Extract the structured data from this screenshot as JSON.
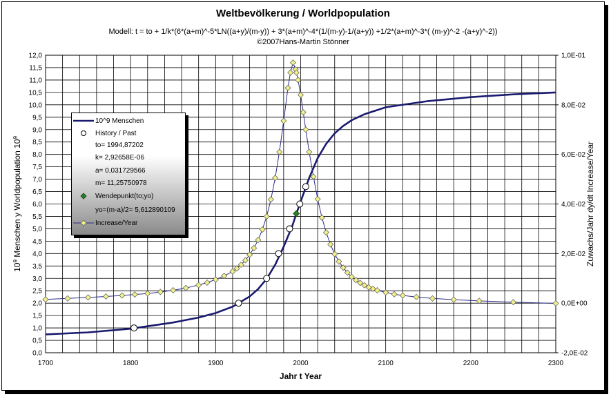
{
  "title": "Weltbevölkerung / Worldpopulation",
  "subtitle": "Modell: t = to + 1/k*(6*(a+m)^-5*LN((a+y)/(m-y)) + 3*(a+m)^-4*(1/(m-y)-1/(a+y)) +1/2*(a+m)^-3*( (m-y)^-2 -(a+y)^-2))",
  "copyright": "©2007Hans-Martin Stönner",
  "chart_data": {
    "type": "line",
    "xlabel": "Jahr   t   Year",
    "ylabel_left": "10^9 Menschen y   Worldpopulation 10^9",
    "ylabel_right": "Zuwachs/Jahr dy/dt   Increase/Year",
    "xlim": [
      1700,
      2300
    ],
    "ylim_left": [
      0,
      12
    ],
    "ylim_right": [
      -0.02,
      0.1
    ],
    "x_ticks": [
      "1700",
      "1800",
      "1900",
      "2000",
      "2100",
      "2200",
      "2300"
    ],
    "y_ticks_left": [
      "0,0",
      "0,5",
      "1,0",
      "1,5",
      "2,0",
      "2,5",
      "3,0",
      "3,5",
      "4,0",
      "4,5",
      "5,0",
      "5,5",
      "6,0",
      "6,5",
      "7,0",
      "7,5",
      "8,0",
      "8,5",
      "9,0",
      "9,5",
      "10,0",
      "10,5",
      "11,0",
      "11,5",
      "12,0"
    ],
    "y_ticks_right": [
      "-2,0E-02",
      "0,0E+00",
      "2,0E-02",
      "4,0E-02",
      "6,0E-02",
      "8,0E-02",
      "1,0E-01"
    ],
    "grid": true,
    "legend_position": "left",
    "series": [
      {
        "name": "10^9 Menschen",
        "axis": "left",
        "color": "#1a1a6e",
        "x": [
          1700,
          1750,
          1800,
          1850,
          1880,
          1900,
          1920,
          1940,
          1950,
          1960,
          1970,
          1980,
          1990,
          1995,
          2000,
          2010,
          2020,
          2030,
          2040,
          2050,
          2060,
          2075,
          2100,
          2150,
          2200,
          2250,
          2300
        ],
        "y": [
          0.74,
          0.82,
          0.97,
          1.22,
          1.42,
          1.6,
          1.86,
          2.27,
          2.57,
          2.98,
          3.55,
          4.28,
          5.1,
          5.61,
          6.1,
          7.05,
          7.85,
          8.43,
          8.85,
          9.15,
          9.38,
          9.62,
          9.9,
          10.15,
          10.31,
          10.42,
          10.5
        ]
      },
      {
        "name": "History / Past",
        "axis": "left",
        "marker": "circle",
        "x": [
          1804,
          1927,
          1960,
          1974,
          1987,
          1999,
          2006
        ],
        "y": [
          1.0,
          2.0,
          3.0,
          4.0,
          5.0,
          6.0,
          6.7
        ]
      },
      {
        "name": "Wendepunkt(to;yo)",
        "axis": "left",
        "marker": "diamond",
        "color": "#2e7d32",
        "x": [
          1994.87202
        ],
        "y": [
          5.612890109
        ]
      },
      {
        "name": "Increase/Year",
        "axis": "right",
        "color": "#2b2b8a",
        "marker": "diamond",
        "marker_color": "#f2f08a",
        "x": [
          1700,
          1726,
          1750,
          1771,
          1790,
          1805,
          1820,
          1835,
          1850,
          1865,
          1880,
          1890,
          1900,
          1910,
          1920,
          1925,
          1930,
          1935,
          1940,
          1945,
          1950,
          1955,
          1960,
          1965,
          1970,
          1975,
          1980,
          1985,
          1988,
          1991,
          1994,
          1995,
          1997,
          2000,
          2003,
          2006,
          2010,
          2015,
          2020,
          2025,
          2030,
          2035,
          2040,
          2045,
          2050,
          2055,
          2060,
          2065,
          2070,
          2075,
          2080,
          2085,
          2090,
          2100,
          2110,
          2120,
          2136,
          2155,
          2180,
          2210,
          2250,
          2300
        ],
        "y": [
          0.0015,
          0.0019,
          0.0023,
          0.0027,
          0.0031,
          0.0035,
          0.0039,
          0.0045,
          0.0052,
          0.0061,
          0.0073,
          0.0083,
          0.0095,
          0.011,
          0.0128,
          0.014,
          0.0155,
          0.0173,
          0.0195,
          0.0222,
          0.0255,
          0.0297,
          0.035,
          0.0418,
          0.0505,
          0.061,
          0.0735,
          0.0868,
          0.093,
          0.097,
          0.0943,
          0.093,
          0.09,
          0.084,
          0.077,
          0.07,
          0.061,
          0.051,
          0.042,
          0.0345,
          0.0285,
          0.0237,
          0.0198,
          0.0168,
          0.0143,
          0.0123,
          0.0106,
          0.0093,
          0.0082,
          0.0072,
          0.0064,
          0.0058,
          0.0052,
          0.0043,
          0.0036,
          0.0031,
          0.0025,
          0.0019,
          0.0014,
          0.0009,
          0.0004,
          -0.0001
        ]
      }
    ]
  },
  "legend": {
    "items": [
      {
        "label": "10^9 Menschen",
        "symbol": "line"
      },
      {
        "label": "History / Past",
        "symbol": "circle"
      },
      {
        "label": "to= 1994,87202",
        "symbol": "none"
      },
      {
        "label": "k= 2,92658E-06",
        "symbol": "none"
      },
      {
        "label": "a= 0,031729566",
        "symbol": "none"
      },
      {
        "label": "m= 11,25750978",
        "symbol": "none"
      },
      {
        "label": "Wendepunkt(to;yo)",
        "symbol": "green-diamond"
      },
      {
        "label": "yo=(m-a)/2= 5,612890109",
        "symbol": "none"
      },
      {
        "label": "Increase/Year",
        "symbol": "line-diamond"
      }
    ]
  }
}
